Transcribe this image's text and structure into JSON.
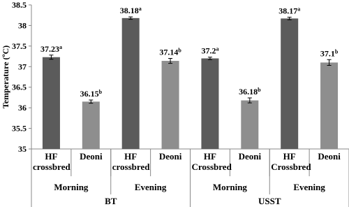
{
  "chart_data": {
    "type": "bar",
    "y_label": "Temperature (ºC)",
    "categories": [
      "HF crossbred",
      "Deoni",
      "HF crossbred",
      "Deoni",
      "HF Crossbred",
      "Deoni",
      "HF Crossbred",
      "Deoni"
    ],
    "subgroups": [
      "Morning",
      "Evening",
      "Morning",
      "Evening"
    ],
    "groups": [
      "BT",
      "USST"
    ],
    "values": [
      37.23,
      36.15,
      38.18,
      37.14,
      37.2,
      36.18,
      38.17,
      37.1
    ],
    "errors": [
      0.05,
      0.04,
      0.03,
      0.06,
      0.03,
      0.06,
      0.03,
      0.07
    ],
    "letters": [
      "a",
      "b",
      "a",
      "b",
      "a",
      "b",
      "a",
      "b"
    ],
    "colors": [
      "#5b5b5b",
      "#8e8e8e",
      "#5b5b5b",
      "#8e8e8e",
      "#5b5b5b",
      "#8e8e8e",
      "#5b5b5b",
      "#8e8e8e"
    ],
    "ylim": [
      35,
      38.5
    ],
    "yticks": [
      35,
      35.5,
      36,
      36.5,
      37,
      37.5,
      38,
      38.5
    ]
  }
}
